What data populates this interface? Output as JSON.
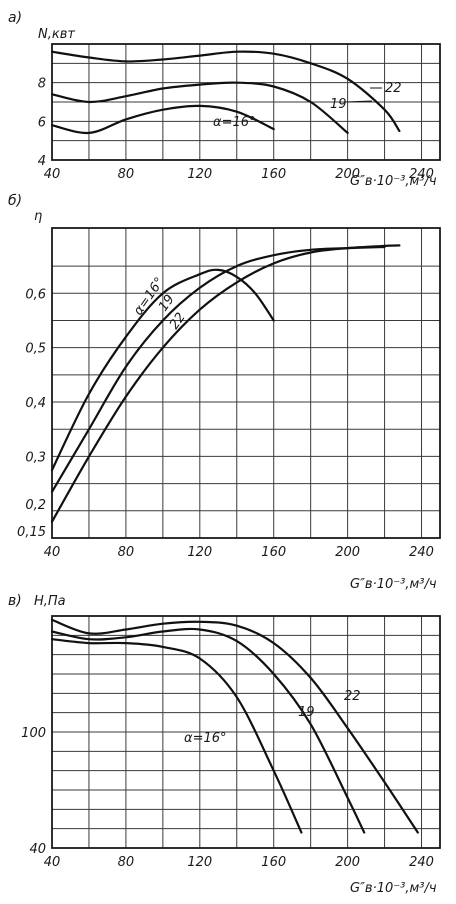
{
  "chart_data": [
    {
      "type": "line",
      "panel_label": "а)",
      "ylabel": "N,квт",
      "xlabel": "G″в·10⁻³,м³/ч",
      "x_ticks": [
        40,
        80,
        120,
        160,
        200,
        240
      ],
      "y_ticks": [
        4,
        6,
        8
      ],
      "xlim": [
        40,
        250
      ],
      "ylim": [
        4,
        10
      ],
      "series": [
        {
          "name": "α=16°",
          "x": [
            40,
            60,
            80,
            100,
            120,
            140,
            160
          ],
          "y": [
            5.8,
            5.4,
            6.1,
            6.6,
            6.8,
            6.5,
            5.6
          ]
        },
        {
          "name": "19",
          "x": [
            40,
            60,
            80,
            100,
            120,
            140,
            160,
            180,
            200
          ],
          "y": [
            7.4,
            7.0,
            7.3,
            7.7,
            7.9,
            8.0,
            7.8,
            7.0,
            5.4
          ]
        },
        {
          "name": "22",
          "x": [
            40,
            60,
            80,
            100,
            120,
            140,
            160,
            180,
            200,
            220,
            228
          ],
          "y": [
            9.6,
            9.3,
            9.1,
            9.2,
            9.4,
            9.6,
            9.5,
            9.0,
            8.2,
            6.6,
            5.5
          ]
        }
      ]
    },
    {
      "type": "line",
      "panel_label": "б)",
      "ylabel": "η",
      "xlabel": "G″в·10⁻³,м³/ч",
      "x_ticks": [
        40,
        80,
        120,
        160,
        200,
        240
      ],
      "y_ticks": [
        0.15,
        0.2,
        0.3,
        0.4,
        0.5,
        0.6
      ],
      "y_tick_labels": [
        "0,15",
        "0,2",
        "0,3",
        "0,4",
        "0,5",
        "0,6"
      ],
      "xlim": [
        40,
        250
      ],
      "ylim": [
        0.15,
        0.72
      ],
      "series": [
        {
          "name": "α=16°",
          "x": [
            40,
            60,
            80,
            100,
            120,
            130,
            140,
            150,
            160
          ],
          "y": [
            0.275,
            0.415,
            0.52,
            0.6,
            0.635,
            0.643,
            0.63,
            0.6,
            0.55
          ]
        },
        {
          "name": "19",
          "x": [
            40,
            60,
            80,
            100,
            120,
            140,
            160,
            180,
            200,
            220
          ],
          "y": [
            0.235,
            0.35,
            0.465,
            0.55,
            0.61,
            0.65,
            0.67,
            0.68,
            0.683,
            0.685
          ]
        },
        {
          "name": "22",
          "x": [
            40,
            60,
            80,
            100,
            120,
            140,
            160,
            180,
            200,
            220,
            228
          ],
          "y": [
            0.18,
            0.3,
            0.41,
            0.5,
            0.57,
            0.62,
            0.655,
            0.675,
            0.683,
            0.687,
            0.688
          ]
        }
      ]
    },
    {
      "type": "line",
      "panel_label": "в)",
      "ylabel": "H,Па",
      "xlabel": "G″в·10⁻³,м³/ч",
      "x_ticks": [
        40,
        80,
        120,
        160,
        200,
        240
      ],
      "y_ticks": [
        40,
        100
      ],
      "xlim": [
        40,
        250
      ],
      "ylim": [
        40,
        160
      ],
      "series": [
        {
          "name": "α=16°",
          "x": [
            40,
            60,
            80,
            100,
            120,
            140,
            160,
            175
          ],
          "y": [
            148,
            146,
            146,
            144,
            138,
            118,
            80,
            48
          ]
        },
        {
          "name": "19",
          "x": [
            40,
            60,
            80,
            100,
            120,
            140,
            160,
            180,
            200,
            209
          ],
          "y": [
            152,
            148,
            149,
            152,
            153,
            147,
            130,
            104,
            66,
            48
          ]
        },
        {
          "name": "22",
          "x": [
            40,
            60,
            80,
            100,
            120,
            140,
            160,
            180,
            200,
            220,
            238
          ],
          "y": [
            158,
            151,
            153,
            156,
            157,
            155,
            146,
            128,
            102,
            74,
            48
          ]
        }
      ]
    }
  ],
  "curve_labels": {
    "a_alpha": "α=16°",
    "a_19": "19",
    "a_22": "22",
    "b_alpha": "α=16°",
    "b_19": "19",
    "b_22": "22",
    "c_alpha": "α=16°",
    "c_19": "19",
    "c_22": "22"
  }
}
